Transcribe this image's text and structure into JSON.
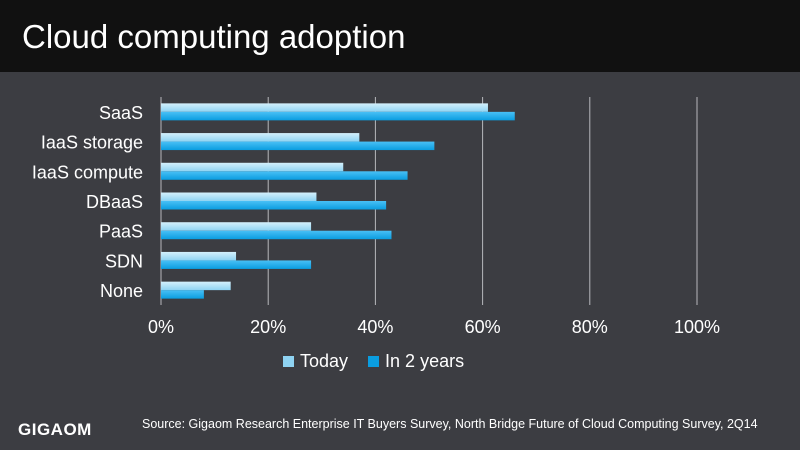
{
  "title": "Cloud computing adoption",
  "source": "Source: Gigaom Research Enterprise IT Buyers Survey, North Bridge Future of Cloud Computing Survey, 2Q14",
  "logo": "GIGAOM",
  "colors": {
    "background": "#3c3d42",
    "title_bar": "#111111",
    "today": "#8fd3f2",
    "in_2_years": "#0a9de0",
    "grid": "#b7b8bc"
  },
  "chart_data": {
    "type": "bar",
    "orientation": "horizontal",
    "categories": [
      "SaaS",
      "IaaS storage",
      "IaaS compute",
      "DBaaS",
      "PaaS",
      "SDN",
      "None"
    ],
    "series": [
      {
        "name": "Today",
        "values": [
          61,
          37,
          34,
          29,
          28,
          14,
          13
        ]
      },
      {
        "name": "In 2 years",
        "values": [
          66,
          51,
          46,
          42,
          43,
          28,
          8
        ]
      }
    ],
    "xlim": [
      0,
      100
    ],
    "xticks": [
      "0%",
      "20%",
      "40%",
      "60%",
      "80%",
      "100%"
    ],
    "grid": true,
    "legend_position": "bottom"
  }
}
